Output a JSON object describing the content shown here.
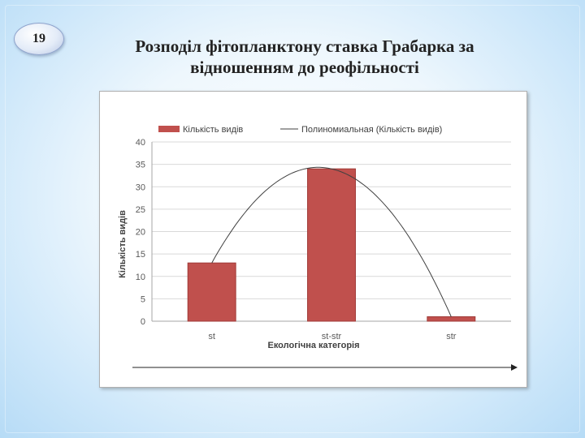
{
  "slide": {
    "number": "19",
    "title_line1": "Розподіл фітопланктону ставка Грабарка за",
    "title_line2": "відношенням до реофільності"
  },
  "colors": {
    "bar": "#c0504d",
    "bar_border": "#a03a37",
    "trendline": "#404040",
    "grid": "#d9d9d9"
  },
  "chart_data": {
    "type": "bar",
    "categories": [
      "st",
      "st-str",
      "str"
    ],
    "series": [
      {
        "name": "Кількість видів",
        "values": [
          13,
          34,
          1
        ]
      }
    ],
    "trendline": {
      "name": "Полиномиальная (Кількість видів)",
      "type": "polynomial",
      "order": 2
    },
    "ylim": [
      0,
      40
    ],
    "yticks": [
      0,
      5,
      10,
      15,
      20,
      25,
      30,
      35,
      40
    ],
    "xlabel": "Екологічна категорія",
    "ylabel": "Кількість видів",
    "grid": true,
    "legend": "top"
  }
}
